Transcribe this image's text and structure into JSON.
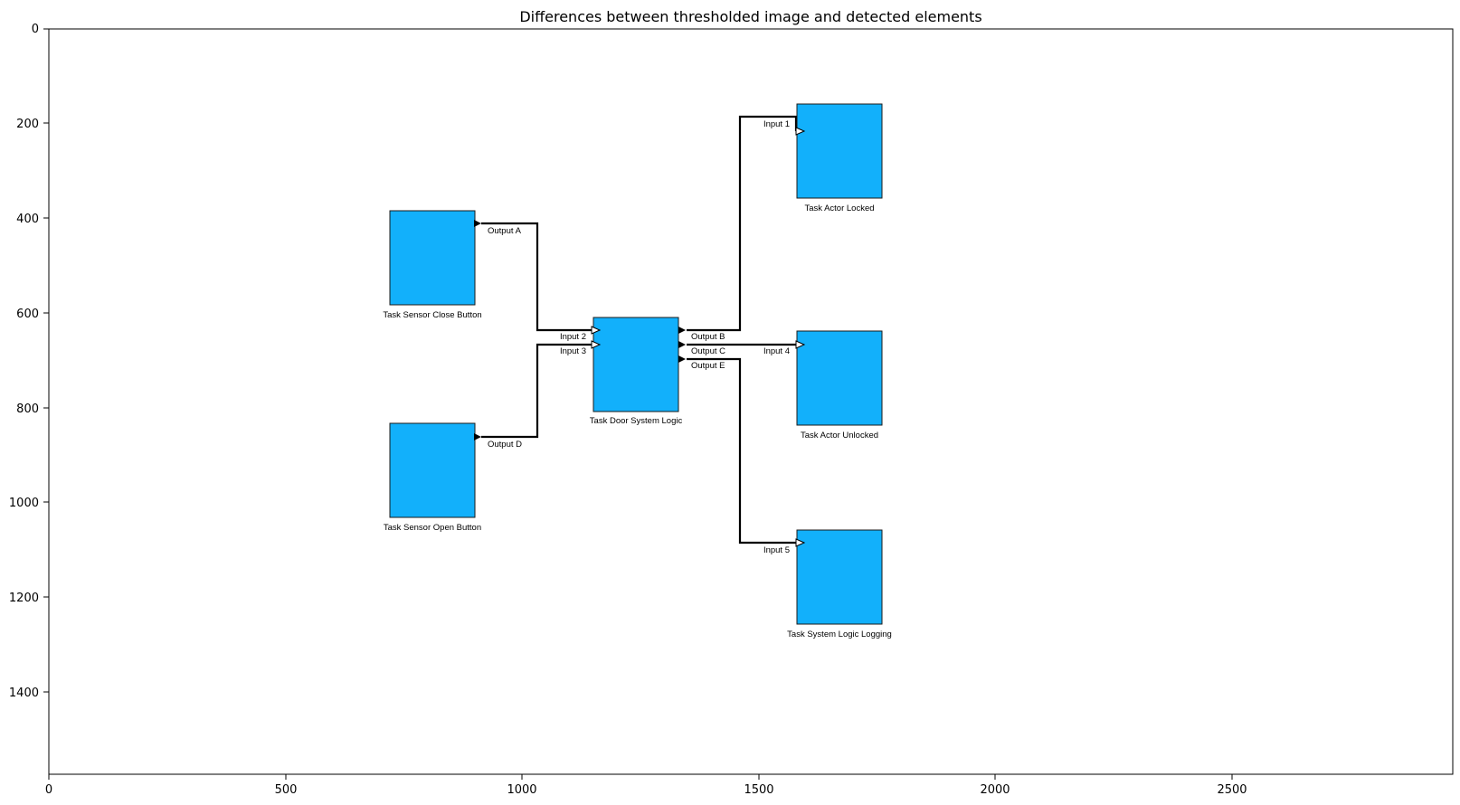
{
  "title": "Differences between thresholded image and detected elements",
  "axes": {
    "x_ticks": [
      "0",
      "500",
      "1000",
      "1500",
      "2000",
      "2500"
    ],
    "y_ticks": [
      "0",
      "200",
      "400",
      "600",
      "800",
      "1000",
      "1200",
      "1400"
    ]
  },
  "colors": {
    "block_fill": "#12b0fb",
    "wire": "#000000",
    "input_port": "#ffffff",
    "output_port": "#000000"
  },
  "blocks": {
    "close_button": "Task Sensor Close Button",
    "open_button": "Task Sensor Open Button",
    "door_logic": "Task Door System Logic",
    "actor_locked": "Task Actor Locked",
    "actor_unlocked": "Task Actor Unlocked",
    "logging": "Task System Logic Logging"
  },
  "ports": {
    "output_a": "Output A",
    "output_d": "Output D",
    "input_2": "Input 2",
    "input_3": "Input 3",
    "output_b": "Output B",
    "output_c": "Output C",
    "output_e": "Output E",
    "input_1": "Input 1",
    "input_4": "Input 4",
    "input_5": "Input 5"
  }
}
